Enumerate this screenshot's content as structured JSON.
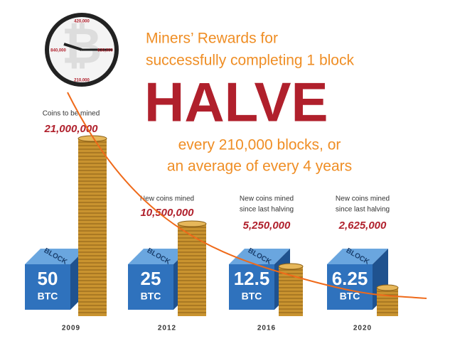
{
  "clock": {
    "labels": [
      "420,000",
      "630,000",
      "210,000",
      "840,000"
    ]
  },
  "headline": {
    "line1": "Miners’ Rewards for",
    "line2": "successfully completing 1 block",
    "title": "HALVE",
    "sub1": "every 210,000 blocks, or",
    "sub2": "an average of every 4 years"
  },
  "columns": [
    {
      "caption": [
        "Coins to be mined"
      ],
      "amount": "21,000,000",
      "block": "BLOCK",
      "reward": "50",
      "unit": "BTC",
      "year": "2009"
    },
    {
      "caption": [
        "New coins mined"
      ],
      "amount": "10,500,000",
      "block": "BLOCK",
      "reward": "25",
      "unit": "BTC",
      "year": "2012"
    },
    {
      "caption": [
        "New coins mined",
        "since last halving"
      ],
      "amount": "5,250,000",
      "block": "BLOCK",
      "reward": "12.5",
      "unit": "BTC",
      "year": "2016"
    },
    {
      "caption": [
        "New coins mined",
        "since last halving"
      ],
      "amount": "2,625,000",
      "block": "BLOCK",
      "reward": "6.25",
      "unit": "BTC",
      "year": "2020"
    }
  ]
}
